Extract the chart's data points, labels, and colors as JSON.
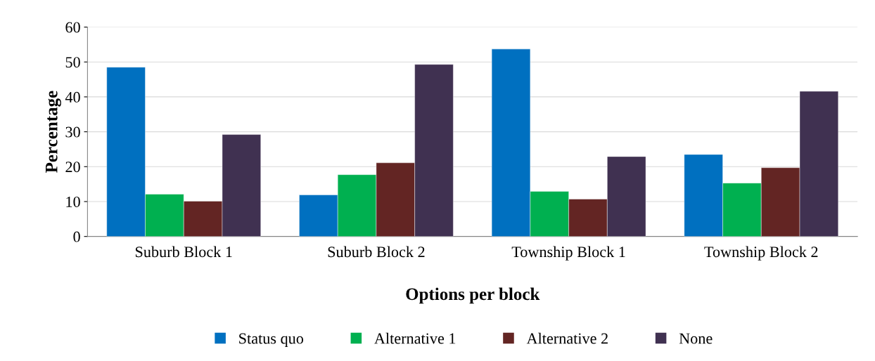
{
  "chart_data": {
    "type": "bar",
    "xlabel": "Options per block",
    "ylabel": "Percentage",
    "categories": [
      "Suburb Block 1",
      "Suburb Block 2",
      "Township Block 1",
      "Township Block 2"
    ],
    "series": [
      {
        "name": "Status quo",
        "color": "#0070c0",
        "values": [
          48.5,
          11.9,
          53.7,
          23.5
        ]
      },
      {
        "name": "Alternative 1",
        "color": "#00b050",
        "values": [
          12.1,
          17.7,
          12.9,
          15.3
        ]
      },
      {
        "name": "Alternative 2",
        "color": "#632523",
        "values": [
          10.1,
          21.1,
          10.7,
          19.7
        ]
      },
      {
        "name": "None",
        "color": "#403151",
        "values": [
          29.2,
          49.3,
          22.9,
          41.6
        ]
      }
    ],
    "ylim": [
      0,
      60
    ],
    "yticks": [
      0,
      10,
      20,
      30,
      40,
      50,
      60
    ],
    "grid": "y",
    "legend": "bottom"
  }
}
